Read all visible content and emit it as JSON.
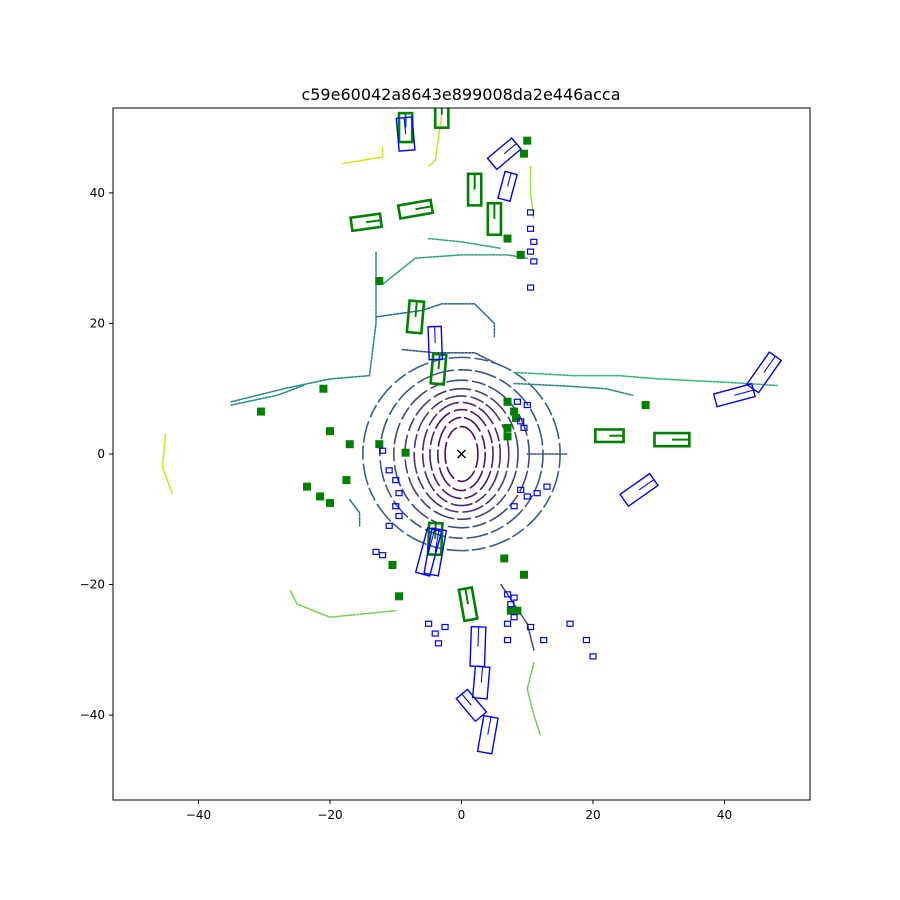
{
  "chart_data": {
    "type": "scatter",
    "title": "c59e60042a8643e899008da2e446acca",
    "xlabel": "",
    "ylabel": "",
    "xlim": [
      -53,
      53
    ],
    "ylim": [
      -53,
      53
    ],
    "grid": false,
    "xticks": [
      -40,
      -20,
      0,
      20,
      40
    ],
    "yticks": [
      -40,
      -20,
      0,
      20,
      40
    ],
    "xtick_labels": [
      "−40",
      "−20",
      "0",
      "20",
      "40"
    ],
    "ytick_labels": [
      "−40",
      "−20",
      "0",
      "20",
      "40"
    ],
    "ego_marker": {
      "x": 0,
      "y": 0,
      "symbol": "x",
      "color": "#000000"
    },
    "colors": {
      "ground_truth": "#008000",
      "prediction": "#0000ff",
      "lidar_near": "#3b1f6b",
      "lidar_mid": "#2c7f8e",
      "lidar_far": "#d4e021"
    },
    "lidar_rings": [
      {
        "rx": 2.5,
        "ry": 4.2,
        "color": "#44106a"
      },
      {
        "rx": 3.6,
        "ry": 5.6,
        "color": "#45156f"
      },
      {
        "rx": 4.8,
        "ry": 6.8,
        "color": "#46206f"
      },
      {
        "rx": 5.9,
        "ry": 7.9,
        "color": "#472a72"
      },
      {
        "rx": 7.2,
        "ry": 8.9,
        "color": "#463578"
      },
      {
        "rx": 8.6,
        "ry": 10.0,
        "color": "#433f7d"
      },
      {
        "rx": 10.3,
        "ry": 11.3,
        "color": "#404a82"
      },
      {
        "rx": 12.4,
        "ry": 12.9,
        "color": "#3b5487"
      },
      {
        "rx": 15.0,
        "ry": 14.8,
        "color": "#365f8b"
      }
    ],
    "lidar_segments": [
      {
        "pts": [
          [
            -35,
            8
          ],
          [
            -27,
            10
          ],
          [
            -20,
            11.5
          ],
          [
            -14,
            12
          ],
          [
            -13,
            20
          ],
          [
            -13,
            26
          ],
          [
            -13,
            31
          ]
        ],
        "color": "#2c8a8a"
      },
      {
        "pts": [
          [
            -12,
            26
          ],
          [
            -7,
            30
          ],
          [
            0,
            30.5
          ],
          [
            7,
            30.5
          ],
          [
            10,
            30
          ]
        ],
        "color": "#31a084"
      },
      {
        "pts": [
          [
            -5,
            33
          ],
          [
            0,
            32.5
          ],
          [
            6,
            31.5
          ]
        ],
        "color": "#3aa57c"
      },
      {
        "pts": [
          [
            -13,
            21
          ],
          [
            -6,
            22
          ],
          [
            -3,
            23
          ],
          [
            2,
            23
          ],
          [
            5,
            20
          ],
          [
            5,
            18
          ]
        ],
        "color": "#2f6e8d"
      },
      {
        "pts": [
          [
            -9,
            16
          ],
          [
            -4,
            15.5
          ],
          [
            2,
            15.5
          ],
          [
            5,
            14
          ]
        ],
        "color": "#37588a"
      },
      {
        "pts": [
          [
            8,
            12.5
          ],
          [
            17,
            12
          ],
          [
            24,
            12
          ],
          [
            30,
            11.5
          ],
          [
            40,
            11
          ],
          [
            48,
            10.5
          ]
        ],
        "color": "#35b779"
      },
      {
        "pts": [
          [
            8,
            10.8
          ],
          [
            16,
            10.4
          ],
          [
            22,
            10
          ],
          [
            26,
            9
          ]
        ],
        "color": "#2f8a8b"
      },
      {
        "pts": [
          [
            10,
            0
          ],
          [
            16,
            0
          ]
        ],
        "color": "#3b528b"
      },
      {
        "pts": [
          [
            -35,
            7.5
          ],
          [
            -28,
            9
          ],
          [
            -24,
            10.5
          ]
        ],
        "color": "#21918c"
      },
      {
        "pts": [
          [
            -26,
            -21
          ],
          [
            -25,
            -23
          ],
          [
            -20,
            -25
          ],
          [
            -10,
            -24
          ]
        ],
        "color": "#7ad151"
      },
      {
        "pts": [
          [
            6,
            -20
          ],
          [
            8,
            -23
          ],
          [
            10,
            -26
          ],
          [
            11,
            -30
          ]
        ],
        "color": "#3e4989"
      },
      {
        "pts": [
          [
            11,
            -32
          ],
          [
            10,
            -36
          ],
          [
            11,
            -40
          ],
          [
            12,
            -43
          ]
        ],
        "color": "#6ece58"
      },
      {
        "pts": [
          [
            -17,
            -7
          ],
          [
            -15.5,
            -9
          ],
          [
            -15.5,
            -11
          ]
        ],
        "color": "#2a768e"
      },
      {
        "pts": [
          [
            -3,
            52
          ],
          [
            -4,
            45
          ],
          [
            -5,
            44
          ]
        ],
        "color": "#c8e020"
      },
      {
        "pts": [
          [
            -18,
            44.5
          ],
          [
            -12,
            45.5
          ],
          [
            -12,
            47
          ]
        ],
        "color": "#d8e219"
      },
      {
        "pts": [
          [
            10.5,
            44
          ],
          [
            10.5,
            40
          ],
          [
            11,
            36
          ]
        ],
        "color": "#a2da37"
      },
      {
        "pts": [
          [
            -45,
            3
          ],
          [
            -45.5,
            -2
          ],
          [
            -44,
            -6
          ]
        ],
        "color": "#d0e11c"
      }
    ],
    "ground_truth_boxes": [
      {
        "cx": -8.5,
        "cy": 50,
        "w": 2.0,
        "l": 4.4,
        "yaw": 90
      },
      {
        "cx": -3,
        "cy": 52,
        "w": 2.0,
        "l": 4.0,
        "yaw": 90
      },
      {
        "cx": 2,
        "cy": 40.5,
        "w": 2.0,
        "l": 4.8,
        "yaw": 90
      },
      {
        "cx": 5,
        "cy": 36,
        "w": 2.0,
        "l": 4.8,
        "yaw": 90
      },
      {
        "cx": -7,
        "cy": 37.5,
        "w": 2.0,
        "l": 5.0,
        "yaw": 10
      },
      {
        "cx": -14.5,
        "cy": 35.5,
        "w": 2.0,
        "l": 4.5,
        "yaw": 8
      },
      {
        "cx": -7,
        "cy": 21,
        "w": 2.2,
        "l": 4.8,
        "yaw": 85
      },
      {
        "cx": -3.5,
        "cy": 13,
        "w": 2.0,
        "l": 4.5,
        "yaw": 85
      },
      {
        "cx": 22.5,
        "cy": 2.8,
        "w": 1.9,
        "l": 4.3,
        "yaw": 0
      },
      {
        "cx": 32,
        "cy": 2.2,
        "w": 2.0,
        "l": 5.3,
        "yaw": 0
      },
      {
        "cx": -4,
        "cy": -13,
        "w": 2.0,
        "l": 4.8,
        "yaw": 88
      },
      {
        "cx": 1,
        "cy": -23,
        "w": 2.0,
        "l": 4.8,
        "yaw": 100
      }
    ],
    "prediction_boxes": [
      {
        "cx": -8.5,
        "cy": 49,
        "w": 2.4,
        "l": 5.0,
        "yaw": 95
      },
      {
        "cx": 6.5,
        "cy": 46,
        "w": 2.2,
        "l": 4.8,
        "yaw": 40
      },
      {
        "cx": 7,
        "cy": 41,
        "w": 1.9,
        "l": 4.2,
        "yaw": 75
      },
      {
        "cx": -4,
        "cy": 17,
        "w": 2.0,
        "l": 5.0,
        "yaw": 92
      },
      {
        "cx": 41.5,
        "cy": 9,
        "w": 2.0,
        "l": 6.0,
        "yaw": 15
      },
      {
        "cx": 46,
        "cy": 12.5,
        "w": 2.2,
        "l": 6.0,
        "yaw": 55
      },
      {
        "cx": 27,
        "cy": -5.5,
        "w": 2.2,
        "l": 5.5,
        "yaw": 35
      },
      {
        "cx": -5,
        "cy": -15,
        "w": 2.2,
        "l": 7.0,
        "yaw": 75
      },
      {
        "cx": -4,
        "cy": -15,
        "w": 2.2,
        "l": 7.0,
        "yaw": 80
      },
      {
        "cx": 2.5,
        "cy": -29.5,
        "w": 2.2,
        "l": 6.0,
        "yaw": 88
      },
      {
        "cx": 3,
        "cy": -35,
        "w": 2.2,
        "l": 4.8,
        "yaw": 85
      },
      {
        "cx": 1.5,
        "cy": -38.5,
        "w": 2.2,
        "l": 4.5,
        "yaw": 130
      },
      {
        "cx": 4,
        "cy": -43,
        "w": 2.2,
        "l": 5.5,
        "yaw": 80
      }
    ],
    "ground_truth_pedestrians": [
      [
        10,
        48
      ],
      [
        9.5,
        46
      ],
      [
        9,
        30.5
      ],
      [
        7,
        33
      ],
      [
        -12.5,
        26.5
      ],
      [
        -21,
        10
      ],
      [
        -30.5,
        6.5
      ],
      [
        -20,
        3.5
      ],
      [
        -17,
        1.5
      ],
      [
        -12.5,
        1.5
      ],
      [
        -8.5,
        0.2
      ],
      [
        7,
        8
      ],
      [
        8,
        6.5
      ],
      [
        8.3,
        5.5
      ],
      [
        7,
        4
      ],
      [
        7,
        2.7
      ],
      [
        28,
        7.5
      ],
      [
        -23.5,
        -5
      ],
      [
        -21.5,
        -6.5
      ],
      [
        -20,
        -7.5
      ],
      [
        -17.5,
        -4
      ],
      [
        -10.5,
        -17
      ],
      [
        -9.5,
        -21.8
      ],
      [
        6.5,
        -16
      ],
      [
        9.5,
        -18.5
      ],
      [
        7.5,
        -24
      ],
      [
        8.5,
        -24
      ]
    ],
    "prediction_pedestrians": [
      [
        10.5,
        37
      ],
      [
        10.5,
        34.5
      ],
      [
        11,
        32.5
      ],
      [
        10.5,
        31
      ],
      [
        11,
        29.5
      ],
      [
        10.5,
        25.5
      ],
      [
        8.5,
        8
      ],
      [
        10,
        7.5
      ],
      [
        9,
        5
      ],
      [
        9.5,
        4
      ],
      [
        -12,
        0.5
      ],
      [
        -11,
        -2.5
      ],
      [
        -10,
        -4
      ],
      [
        -9.5,
        -6
      ],
      [
        -10,
        -8
      ],
      [
        -9.5,
        -9.5
      ],
      [
        -11,
        -11
      ],
      [
        -13,
        -15
      ],
      [
        -12,
        -15.5
      ],
      [
        9,
        -5.5
      ],
      [
        10,
        -6.5
      ],
      [
        11.5,
        -6
      ],
      [
        13,
        -5
      ],
      [
        8,
        -8
      ],
      [
        -5,
        -26
      ],
      [
        -4,
        -27.5
      ],
      [
        -3.5,
        -29
      ],
      [
        -2.5,
        -26.5
      ],
      [
        7,
        -21.5
      ],
      [
        8,
        -22
      ],
      [
        7.5,
        -23
      ],
      [
        8,
        -25
      ],
      [
        7,
        -26
      ],
      [
        10.5,
        -26.5
      ],
      [
        12.5,
        -28.5
      ],
      [
        7,
        -28.5
      ],
      [
        16.5,
        -26
      ],
      [
        19,
        -28.5
      ],
      [
        20,
        -31
      ]
    ]
  }
}
